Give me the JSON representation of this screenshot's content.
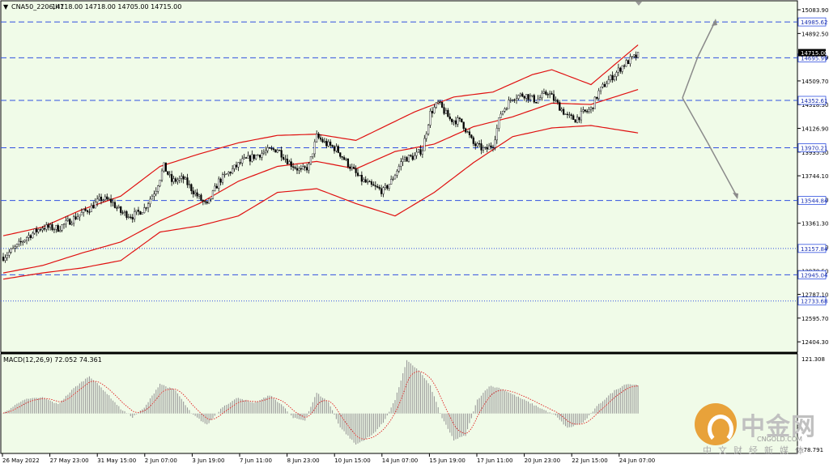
{
  "header": {
    "dropdown_glyph": "▼",
    "symbol": "CNA50_2206,H1",
    "ohlc": "14718.00 14718.00 14705.00 14715.00"
  },
  "macd_label": "MACD(12,26,9) 72.052 74.361",
  "price_axis": {
    "min": 12340,
    "max": 15130,
    "ticks": [
      "15083.90",
      "14892.50",
      "14701.09",
      "14509.70",
      "14318.30",
      "14126.90",
      "13935.50",
      "13744.10",
      "13552.70",
      "13361.30",
      "13169.90",
      "12978.50",
      "12787.10",
      "12595.70",
      "12404.30"
    ]
  },
  "macd_axis": {
    "min": -80,
    "max": 121.308,
    "top_label": "121.308",
    "bottom_label": "-78.791"
  },
  "levels": [
    {
      "value": 14985.62,
      "label": "14985.62",
      "style": "dashed"
    },
    {
      "value": 14695.99,
      "label": "14695.99",
      "style": "dashed"
    },
    {
      "value": 14352.61,
      "label": "14352.61",
      "style": "dashed"
    },
    {
      "value": 13970.21,
      "label": "13970.21",
      "style": "dashed"
    },
    {
      "value": 13544.84,
      "label": "13544.84",
      "style": "dashed"
    },
    {
      "value": 13157.84,
      "label": "13157.84",
      "style": "dotted"
    },
    {
      "value": 12945.04,
      "label": "12945.04",
      "style": "dashed"
    },
    {
      "value": 12733.68,
      "label": "12733.68",
      "style": "dotted"
    }
  ],
  "current_price": {
    "value": 14715.0,
    "label": "14715.00"
  },
  "time_axis": [
    "26 May 2022",
    "27 May 23:00",
    "31 May 15:00",
    "2 Jun 07:00",
    "3 Jun 19:00",
    "7 Jun 11:00",
    "8 Jun 23:00",
    "10 Jun 15:00",
    "14 Jun 07:00",
    "15 Jun 19:00",
    "17 Jun 11:00",
    "20 Jun 23:00",
    "22 Jun 15:00",
    "24 Jun 07:00"
  ],
  "chart_data": {
    "type": "candlestick",
    "price_path": [
      [
        0,
        13090
      ],
      [
        6,
        13160
      ],
      [
        12,
        13250
      ],
      [
        20,
        13330
      ],
      [
        28,
        13320
      ],
      [
        36,
        13400
      ],
      [
        44,
        13480
      ],
      [
        50,
        13560
      ],
      [
        55,
        13540
      ],
      [
        60,
        13450
      ],
      [
        66,
        13420
      ],
      [
        72,
        13480
      ],
      [
        78,
        13640
      ],
      [
        82,
        13820
      ],
      [
        86,
        13700
      ],
      [
        92,
        13720
      ],
      [
        98,
        13600
      ],
      [
        104,
        13500
      ],
      [
        110,
        13700
      ],
      [
        116,
        13780
      ],
      [
        122,
        13860
      ],
      [
        128,
        13900
      ],
      [
        134,
        13940
      ],
      [
        140,
        13960
      ],
      [
        146,
        13850
      ],
      [
        152,
        13780
      ],
      [
        156,
        13820
      ],
      [
        160,
        14060
      ],
      [
        165,
        14000
      ],
      [
        170,
        13960
      ],
      [
        176,
        13840
      ],
      [
        182,
        13720
      ],
      [
        188,
        13660
      ],
      [
        194,
        13620
      ],
      [
        198,
        13700
      ],
      [
        204,
        13880
      ],
      [
        210,
        13900
      ],
      [
        214,
        13960
      ],
      [
        218,
        14250
      ],
      [
        222,
        14330
      ],
      [
        228,
        14200
      ],
      [
        234,
        14180
      ],
      [
        240,
        14000
      ],
      [
        246,
        13950
      ],
      [
        250,
        14000
      ],
      [
        254,
        14250
      ],
      [
        260,
        14380
      ],
      [
        266,
        14400
      ],
      [
        272,
        14350
      ],
      [
        278,
        14420
      ],
      [
        284,
        14300
      ],
      [
        288,
        14220
      ],
      [
        292,
        14200
      ],
      [
        296,
        14250
      ],
      [
        300,
        14280
      ],
      [
        304,
        14420
      ],
      [
        308,
        14500
      ],
      [
        312,
        14560
      ],
      [
        316,
        14630
      ],
      [
        320,
        14680
      ],
      [
        324,
        14715
      ]
    ],
    "bb_mid": [
      [
        0,
        12960
      ],
      [
        20,
        13020
      ],
      [
        40,
        13120
      ],
      [
        60,
        13210
      ],
      [
        80,
        13380
      ],
      [
        100,
        13520
      ],
      [
        120,
        13700
      ],
      [
        140,
        13820
      ],
      [
        160,
        13860
      ],
      [
        180,
        13800
      ],
      [
        200,
        13940
      ],
      [
        220,
        14000
      ],
      [
        240,
        14140
      ],
      [
        260,
        14220
      ],
      [
        280,
        14330
      ],
      [
        300,
        14320
      ],
      [
        324,
        14440
      ]
    ],
    "bb_upper": [
      [
        0,
        13260
      ],
      [
        20,
        13330
      ],
      [
        40,
        13470
      ],
      [
        60,
        13580
      ],
      [
        80,
        13820
      ],
      [
        100,
        13920
      ],
      [
        120,
        14010
      ],
      [
        140,
        14070
      ],
      [
        160,
        14080
      ],
      [
        180,
        14030
      ],
      [
        210,
        14260
      ],
      [
        230,
        14380
      ],
      [
        250,
        14420
      ],
      [
        270,
        14560
      ],
      [
        280,
        14600
      ],
      [
        300,
        14480
      ],
      [
        324,
        14800
      ]
    ],
    "bb_lower": [
      [
        0,
        12910
      ],
      [
        20,
        12960
      ],
      [
        40,
        13000
      ],
      [
        60,
        13060
      ],
      [
        80,
        13290
      ],
      [
        100,
        13340
      ],
      [
        120,
        13420
      ],
      [
        140,
        13610
      ],
      [
        160,
        13640
      ],
      [
        180,
        13520
      ],
      [
        200,
        13420
      ],
      [
        220,
        13610
      ],
      [
        240,
        13850
      ],
      [
        260,
        14060
      ],
      [
        280,
        14130
      ],
      [
        300,
        14150
      ],
      [
        324,
        14090
      ]
    ],
    "macd_path": [
      [
        0,
        0
      ],
      [
        10,
        30
      ],
      [
        20,
        35
      ],
      [
        28,
        20
      ],
      [
        36,
        55
      ],
      [
        44,
        82
      ],
      [
        52,
        48
      ],
      [
        60,
        10
      ],
      [
        66,
        -8
      ],
      [
        72,
        12
      ],
      [
        80,
        65
      ],
      [
        88,
        50
      ],
      [
        96,
        0
      ],
      [
        104,
        -25
      ],
      [
        112,
        15
      ],
      [
        120,
        35
      ],
      [
        128,
        22
      ],
      [
        136,
        40
      ],
      [
        142,
        20
      ],
      [
        148,
        -10
      ],
      [
        154,
        -15
      ],
      [
        160,
        45
      ],
      [
        166,
        25
      ],
      [
        172,
        -30
      ],
      [
        180,
        -68
      ],
      [
        188,
        -48
      ],
      [
        194,
        -20
      ],
      [
        200,
        30
      ],
      [
        206,
        115
      ],
      [
        212,
        95
      ],
      [
        218,
        60
      ],
      [
        224,
        -10
      ],
      [
        230,
        -58
      ],
      [
        236,
        -48
      ],
      [
        242,
        30
      ],
      [
        248,
        60
      ],
      [
        254,
        55
      ],
      [
        260,
        42
      ],
      [
        268,
        25
      ],
      [
        276,
        8
      ],
      [
        282,
        -5
      ],
      [
        288,
        -32
      ],
      [
        296,
        -20
      ],
      [
        304,
        20
      ],
      [
        312,
        50
      ],
      [
        318,
        65
      ],
      [
        324,
        62
      ]
    ]
  }
}
